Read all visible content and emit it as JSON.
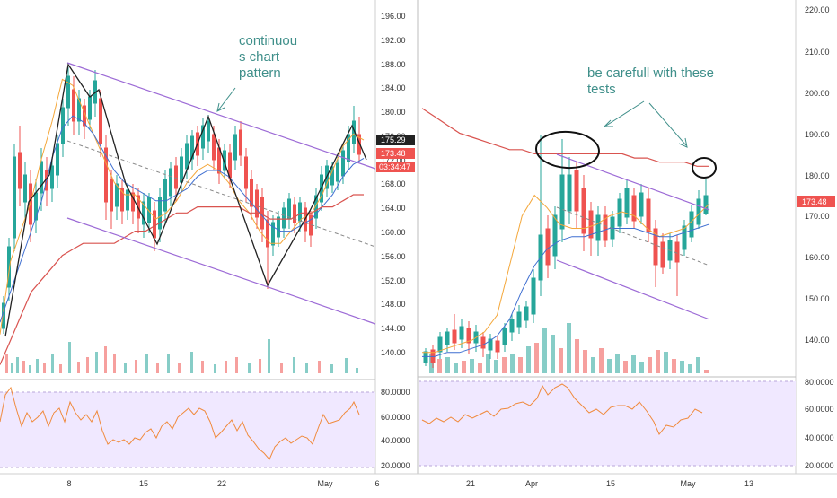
{
  "colors": {
    "up": "#26a69a",
    "down": "#ef5350",
    "channel": "#9c6ad6",
    "ma_red": "#d9534f",
    "ma_orange": "#f4a73a",
    "ma_blue": "#3f6fd1",
    "rsi_line": "#f08a3c",
    "rsi_band": "#f0e8ff",
    "annotation": "#3f8f8a",
    "pattern": "#222222"
  },
  "left_panel": {
    "price_axis": [
      "196.00",
      "192.00",
      "188.00",
      "184.00",
      "180.00",
      "176.00",
      "172.00",
      "168.00",
      "164.00",
      "160.00",
      "156.00",
      "152.00",
      "148.00",
      "144.00",
      "140.00"
    ],
    "rsi_axis": [
      "80.0000",
      "60.0000",
      "40.0000",
      "20.0000"
    ],
    "date_axis": [
      "8",
      "15",
      "22",
      "May",
      "6"
    ],
    "badges": [
      {
        "text": "175.29",
        "color": "#222222"
      },
      {
        "text": "173.48",
        "color": "#ef5350"
      },
      {
        "text": "03:34:47",
        "color": "#ef5350"
      }
    ],
    "annotation": [
      "continuou",
      "s chart",
      "pattern"
    ]
  },
  "right_panel": {
    "price_axis": [
      "220.00",
      "210.00",
      "200.00",
      "190.00",
      "180.00",
      "170.00",
      "160.00",
      "150.00",
      "140.00"
    ],
    "rsi_axis": [
      "80.0000",
      "60.0000",
      "40.0000",
      "20.0000"
    ],
    "date_axis": [
      "21",
      "Apr",
      "15",
      "May",
      "13"
    ],
    "badge": {
      "text": "173.48",
      "color": "#ef5350"
    },
    "annotation": [
      "be carefull with these",
      "tests"
    ]
  },
  "chart_data": [
    {
      "type": "line",
      "ylim": [
        136,
        198
      ],
      "series": [
        {
          "values": [
            143,
            155,
            160,
            165,
            172,
            178,
            185,
            184,
            180,
            176,
            172,
            168,
            166,
            166,
            164,
            162,
            163,
            165,
            168,
            170,
            171,
            170,
            168,
            165,
            163,
            160,
            158,
            158,
            160,
            162,
            163,
            166,
            170,
            174,
            176,
            175
          ]
        },
        {
          "values": [
            145,
            150,
            155,
            160,
            165,
            172,
            177,
            179,
            178,
            176,
            173,
            170,
            168,
            167,
            166,
            165,
            165,
            166,
            167,
            169,
            170,
            170,
            169,
            167,
            165,
            163,
            161,
            160,
            160,
            161,
            162,
            164,
            166,
            169,
            171,
            172
          ]
        },
        {
          "values": [
            138,
            142,
            146,
            150,
            152,
            154,
            156,
            157,
            158,
            158,
            158,
            158,
            159,
            160,
            160,
            161,
            162,
            163,
            163,
            164,
            164,
            164,
            164,
            164,
            163,
            163,
            162,
            162,
            162,
            163,
            163,
            164,
            164,
            165,
            166,
            166
          ]
        }
      ]
    },
    {
      "type": "line",
      "ylim": [
        130,
        224
      ],
      "series": [
        {
          "values": [
            137,
            137,
            138,
            139,
            140,
            142,
            146,
            158,
            170,
            175,
            172,
            168,
            167,
            167,
            168,
            170,
            171,
            170,
            167,
            165,
            166,
            167,
            170,
            173
          ]
        },
        {
          "values": [
            136,
            136,
            137,
            137,
            138,
            139,
            141,
            145,
            152,
            158,
            162,
            164,
            165,
            165,
            166,
            167,
            167,
            167,
            166,
            165,
            165,
            166,
            167,
            168
          ]
        },
        {
          "values": [
            196,
            194,
            192,
            190,
            189,
            188,
            187,
            186,
            186,
            185,
            185,
            185,
            185,
            185,
            185,
            185,
            185,
            184,
            184,
            183,
            183,
            183,
            182,
            182
          ]
        }
      ]
    }
  ]
}
